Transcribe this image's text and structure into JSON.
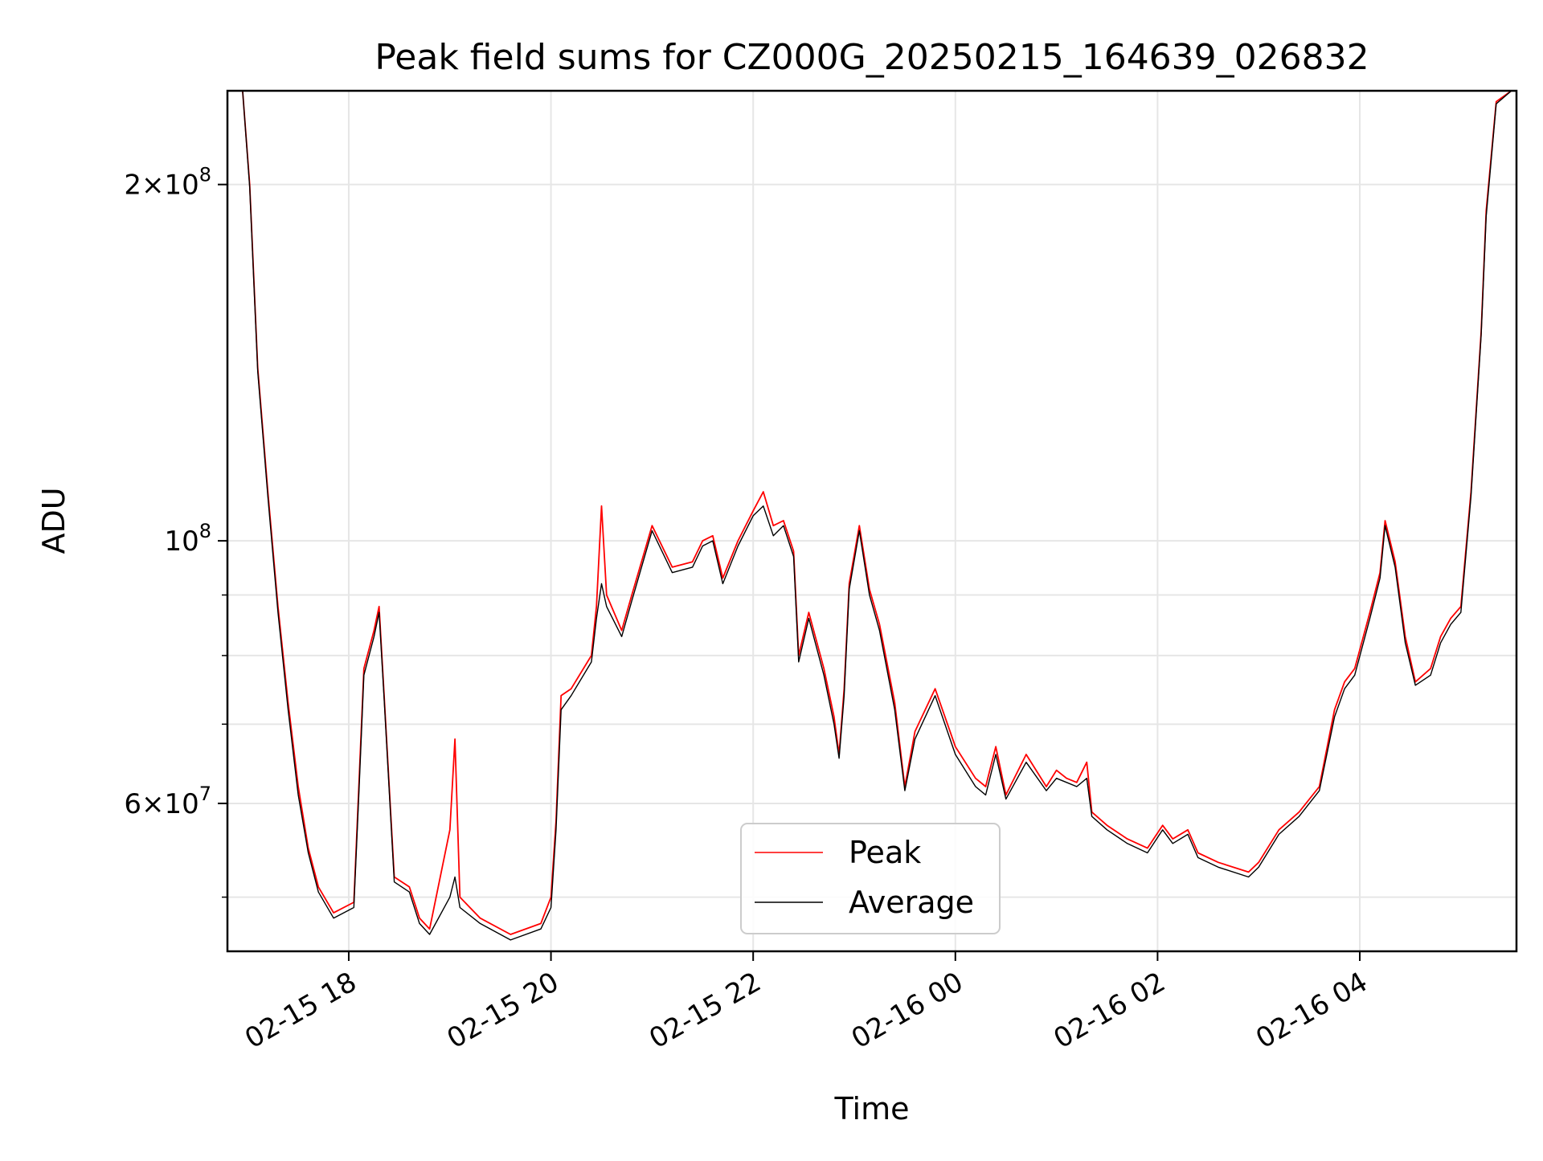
{
  "chart_data": {
    "type": "line",
    "title": "Peak field sums for CZ000G_20250215_164639_026832",
    "xlabel": "Time",
    "ylabel": "ADU",
    "yscale": "log",
    "ylim": [
      45000000,
      240000000
    ],
    "xlim_hours": [
      -1.2,
      11.55
    ],
    "grid": true,
    "legend_position": "bottom-center",
    "x_ticks": [
      {
        "hour": 0,
        "label": "02-15 18"
      },
      {
        "hour": 2,
        "label": "02-15 20"
      },
      {
        "hour": 4,
        "label": "02-15 22"
      },
      {
        "hour": 6,
        "label": "02-16 00"
      },
      {
        "hour": 8,
        "label": "02-16 02"
      },
      {
        "hour": 10,
        "label": "02-16 04"
      }
    ],
    "y_ticks": [
      {
        "value": 60000000,
        "base": "6×10",
        "exp": "7"
      },
      {
        "value": 100000000,
        "base": "10",
        "exp": "8"
      },
      {
        "value": 200000000,
        "base": "2×10",
        "exp": "8"
      }
    ],
    "y_minor_ticks": [
      50000000,
      70000000,
      80000000,
      90000000
    ],
    "series": [
      {
        "name": "Peak",
        "color": "#ff0000",
        "points": [
          [
            -1.05,
            240000000
          ],
          [
            -0.98,
            200000000
          ],
          [
            -0.9,
            140000000
          ],
          [
            -0.8,
            110000000
          ],
          [
            -0.7,
            88000000
          ],
          [
            -0.6,
            73000000
          ],
          [
            -0.5,
            62000000
          ],
          [
            -0.4,
            55000000
          ],
          [
            -0.3,
            51000000
          ],
          [
            -0.15,
            48500000
          ],
          [
            0.05,
            49500000
          ],
          [
            0.1,
            62000000
          ],
          [
            0.15,
            78000000
          ],
          [
            0.25,
            84000000
          ],
          [
            0.3,
            88000000
          ],
          [
            0.35,
            74000000
          ],
          [
            0.45,
            52000000
          ],
          [
            0.6,
            51000000
          ],
          [
            0.7,
            48000000
          ],
          [
            0.8,
            47000000
          ],
          [
            1.0,
            57000000
          ],
          [
            1.05,
            68000000
          ],
          [
            1.1,
            50000000
          ],
          [
            1.3,
            48000000
          ],
          [
            1.6,
            46500000
          ],
          [
            1.9,
            47500000
          ],
          [
            2.0,
            50000000
          ],
          [
            2.05,
            58000000
          ],
          [
            2.1,
            74000000
          ],
          [
            2.2,
            75000000
          ],
          [
            2.4,
            80000000
          ],
          [
            2.45,
            88000000
          ],
          [
            2.5,
            107000000
          ],
          [
            2.55,
            90000000
          ],
          [
            2.7,
            84000000
          ],
          [
            2.8,
            90000000
          ],
          [
            3.0,
            103000000
          ],
          [
            3.2,
            95000000
          ],
          [
            3.4,
            96000000
          ],
          [
            3.5,
            100000000
          ],
          [
            3.6,
            101000000
          ],
          [
            3.7,
            93000000
          ],
          [
            3.85,
            100000000
          ],
          [
            4.0,
            106000000
          ],
          [
            4.1,
            110000000
          ],
          [
            4.2,
            103000000
          ],
          [
            4.3,
            104000000
          ],
          [
            4.4,
            98000000
          ],
          [
            4.45,
            80000000
          ],
          [
            4.55,
            87000000
          ],
          [
            4.7,
            78000000
          ],
          [
            4.8,
            71000000
          ],
          [
            4.85,
            66000000
          ],
          [
            4.9,
            75000000
          ],
          [
            4.95,
            92000000
          ],
          [
            5.05,
            103000000
          ],
          [
            5.15,
            91000000
          ],
          [
            5.25,
            85000000
          ],
          [
            5.4,
            73000000
          ],
          [
            5.5,
            62000000
          ],
          [
            5.6,
            69000000
          ],
          [
            5.8,
            75000000
          ],
          [
            6.0,
            67000000
          ],
          [
            6.2,
            63000000
          ],
          [
            6.3,
            62000000
          ],
          [
            6.4,
            67000000
          ],
          [
            6.5,
            61000000
          ],
          [
            6.7,
            66000000
          ],
          [
            6.9,
            62000000
          ],
          [
            7.0,
            64000000
          ],
          [
            7.1,
            63000000
          ],
          [
            7.2,
            62500000
          ],
          [
            7.3,
            65000000
          ],
          [
            7.35,
            59000000
          ],
          [
            7.5,
            57500000
          ],
          [
            7.7,
            56000000
          ],
          [
            7.9,
            55000000
          ],
          [
            8.05,
            57500000
          ],
          [
            8.15,
            56000000
          ],
          [
            8.3,
            57000000
          ],
          [
            8.4,
            54500000
          ],
          [
            8.6,
            53500000
          ],
          [
            8.9,
            52500000
          ],
          [
            9.0,
            53500000
          ],
          [
            9.2,
            57000000
          ],
          [
            9.4,
            59000000
          ],
          [
            9.6,
            62000000
          ],
          [
            9.75,
            72000000
          ],
          [
            9.85,
            76000000
          ],
          [
            9.95,
            78000000
          ],
          [
            10.1,
            87000000
          ],
          [
            10.2,
            94000000
          ],
          [
            10.25,
            104000000
          ],
          [
            10.35,
            96000000
          ],
          [
            10.45,
            83000000
          ],
          [
            10.55,
            76000000
          ],
          [
            10.7,
            78000000
          ],
          [
            10.8,
            83000000
          ],
          [
            10.9,
            86000000
          ],
          [
            11.0,
            88000000
          ],
          [
            11.1,
            110000000
          ],
          [
            11.2,
            150000000
          ],
          [
            11.25,
            190000000
          ],
          [
            11.35,
            235000000
          ],
          [
            11.5,
            240000000
          ]
        ]
      },
      {
        "name": "Average",
        "color": "#000000",
        "points": [
          [
            -1.05,
            240000000
          ],
          [
            -0.98,
            199000000
          ],
          [
            -0.9,
            139000000
          ],
          [
            -0.8,
            109000000
          ],
          [
            -0.7,
            87000000
          ],
          [
            -0.6,
            72000000
          ],
          [
            -0.5,
            61000000
          ],
          [
            -0.4,
            54500000
          ],
          [
            -0.3,
            50500000
          ],
          [
            -0.15,
            48000000
          ],
          [
            0.05,
            49000000
          ],
          [
            0.1,
            61000000
          ],
          [
            0.15,
            77000000
          ],
          [
            0.25,
            83000000
          ],
          [
            0.3,
            87000000
          ],
          [
            0.35,
            73500000
          ],
          [
            0.45,
            51500000
          ],
          [
            0.6,
            50500000
          ],
          [
            0.7,
            47500000
          ],
          [
            0.8,
            46500000
          ],
          [
            1.0,
            50000000
          ],
          [
            1.05,
            52000000
          ],
          [
            1.1,
            49000000
          ],
          [
            1.3,
            47500000
          ],
          [
            1.6,
            46000000
          ],
          [
            1.9,
            47000000
          ],
          [
            2.0,
            49000000
          ],
          [
            2.05,
            57000000
          ],
          [
            2.1,
            72000000
          ],
          [
            2.2,
            74000000
          ],
          [
            2.4,
            79000000
          ],
          [
            2.45,
            86000000
          ],
          [
            2.5,
            92000000
          ],
          [
            2.55,
            88000000
          ],
          [
            2.7,
            83000000
          ],
          [
            2.8,
            89000000
          ],
          [
            3.0,
            102000000
          ],
          [
            3.2,
            94000000
          ],
          [
            3.4,
            95000000
          ],
          [
            3.5,
            99000000
          ],
          [
            3.6,
            100000000
          ],
          [
            3.7,
            92000000
          ],
          [
            3.85,
            99000000
          ],
          [
            4.0,
            105000000
          ],
          [
            4.1,
            107000000
          ],
          [
            4.2,
            101000000
          ],
          [
            4.3,
            103000000
          ],
          [
            4.4,
            97000000
          ],
          [
            4.45,
            79000000
          ],
          [
            4.55,
            86000000
          ],
          [
            4.7,
            77000000
          ],
          [
            4.8,
            70000000
          ],
          [
            4.85,
            65500000
          ],
          [
            4.9,
            74000000
          ],
          [
            4.95,
            91000000
          ],
          [
            5.05,
            102000000
          ],
          [
            5.15,
            90000000
          ],
          [
            5.25,
            84000000
          ],
          [
            5.4,
            72000000
          ],
          [
            5.5,
            61500000
          ],
          [
            5.6,
            68000000
          ],
          [
            5.8,
            74000000
          ],
          [
            6.0,
            66000000
          ],
          [
            6.2,
            62000000
          ],
          [
            6.3,
            61000000
          ],
          [
            6.4,
            66000000
          ],
          [
            6.5,
            60500000
          ],
          [
            6.7,
            65000000
          ],
          [
            6.9,
            61500000
          ],
          [
            7.0,
            63000000
          ],
          [
            7.1,
            62500000
          ],
          [
            7.2,
            62000000
          ],
          [
            7.3,
            63000000
          ],
          [
            7.35,
            58500000
          ],
          [
            7.5,
            57000000
          ],
          [
            7.7,
            55500000
          ],
          [
            7.9,
            54500000
          ],
          [
            8.05,
            57000000
          ],
          [
            8.15,
            55500000
          ],
          [
            8.3,
            56500000
          ],
          [
            8.4,
            54000000
          ],
          [
            8.6,
            53000000
          ],
          [
            8.9,
            52000000
          ],
          [
            9.0,
            53000000
          ],
          [
            9.2,
            56500000
          ],
          [
            9.4,
            58500000
          ],
          [
            9.6,
            61500000
          ],
          [
            9.75,
            71000000
          ],
          [
            9.85,
            75000000
          ],
          [
            9.95,
            77000000
          ],
          [
            10.1,
            86000000
          ],
          [
            10.2,
            93000000
          ],
          [
            10.25,
            103000000
          ],
          [
            10.35,
            95000000
          ],
          [
            10.45,
            82000000
          ],
          [
            10.55,
            75500000
          ],
          [
            10.7,
            77000000
          ],
          [
            10.8,
            82000000
          ],
          [
            10.9,
            85000000
          ],
          [
            11.0,
            87000000
          ],
          [
            11.1,
            109000000
          ],
          [
            11.2,
            149000000
          ],
          [
            11.25,
            188000000
          ],
          [
            11.35,
            234000000
          ],
          [
            11.5,
            240000000
          ]
        ]
      }
    ]
  }
}
